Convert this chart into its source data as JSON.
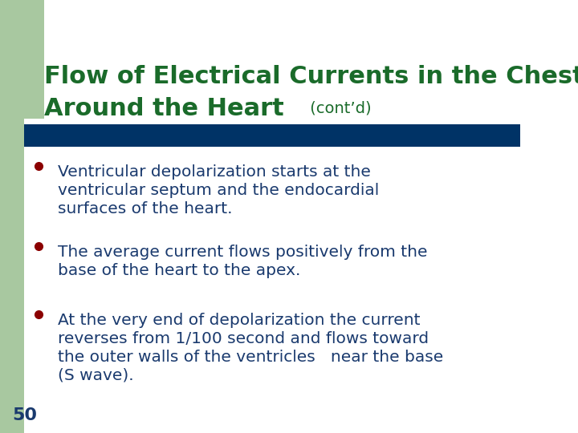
{
  "title_line1": "Flow of Electrical Currents in the Chest",
  "title_line2": "Around the Heart",
  "title_suffix": " (cont’d)",
  "title_color": "#1a6b2a",
  "background_color": "#ffffff",
  "left_bar_color": "#a8c8a0",
  "divider_color": "#003366",
  "bullet_color": "#8b0000",
  "text_color": "#1a3a6e",
  "page_number": "50",
  "page_number_color": "#1a3a6e",
  "bullets": [
    [
      "Ventricular depolarization starts at the",
      "ventricular septum and the endocardial",
      "surfaces of the heart."
    ],
    [
      "The average current flows positively from the",
      "base of the heart to the apex."
    ],
    [
      "At the very end of depolarization the current",
      "reverses from 1/100 second and flows toward",
      "the outer walls of the ventricles   near the base",
      "(S wave)."
    ]
  ],
  "fig_width": 7.2,
  "fig_height": 5.4,
  "dpi": 100
}
